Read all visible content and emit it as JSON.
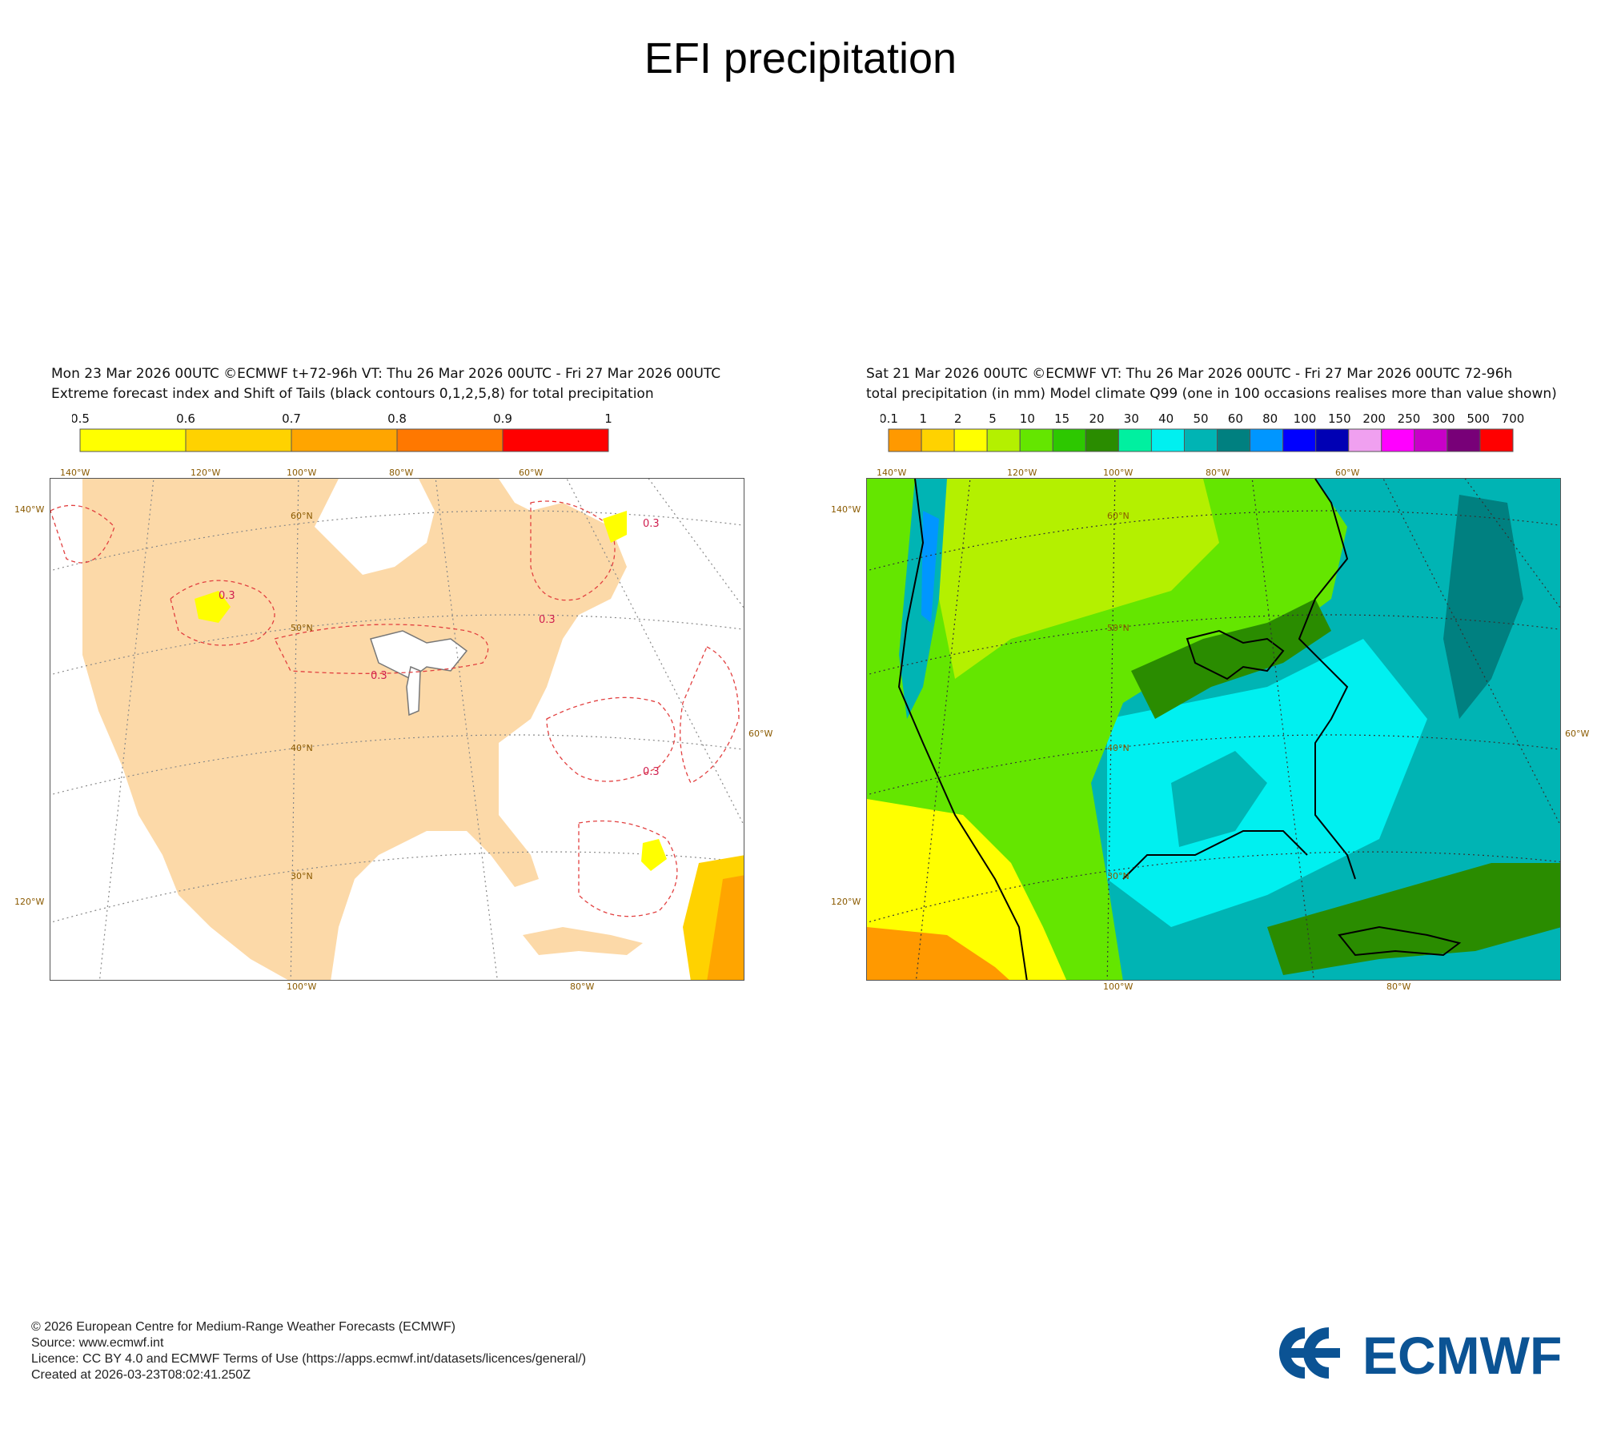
{
  "page": {
    "title": "EFI precipitation"
  },
  "left_panel": {
    "line1": "Mon 23 Mar 2026 00UTC ©ECMWF t+72-96h  VT: Thu 26 Mar 2026 00UTC - Fri 27 Mar 2026 00UTC",
    "line2": "Extreme forecast index and Shift of Tails (black contours 0,1,2,5,8) for total precipitation",
    "colorbar": {
      "ticks": [
        "0.5",
        "0.6",
        "0.7",
        "0.8",
        "0.9",
        "1"
      ],
      "colors": [
        "#ffff00",
        "#ffd200",
        "#ffa500",
        "#ff7800",
        "#ff0000"
      ]
    },
    "contour_labels": [
      "0.3",
      "0.3",
      "0.3",
      "0.3",
      "0.3"
    ],
    "land_color": "#fcd9a8",
    "contour_color": "#e24040"
  },
  "right_panel": {
    "line1": "Sat 21 Mar 2026 00UTC ©ECMWF VT: Thu 26 Mar 2026 00UTC - Fri 27 Mar 2026 00UTC    72-96h",
    "line2": "total precipitation (in mm)  Model climate Q99 (one in 100 occasions realises more than value shown)",
    "colorbar": {
      "ticks": [
        "0.1",
        "1",
        "2",
        "5",
        "10",
        "15",
        "20",
        "30",
        "40",
        "50",
        "60",
        "80",
        "100",
        "150",
        "200",
        "250",
        "300",
        "500",
        "700"
      ],
      "colors": [
        "#ff9900",
        "#ffd200",
        "#ffff00",
        "#b4f000",
        "#64e600",
        "#2dc800",
        "#2a8c00",
        "#00f0a0",
        "#00f0f0",
        "#00b4b4",
        "#008080",
        "#0096ff",
        "#0000ff",
        "#0000b4",
        "#f0a0f0",
        "#ff00ff",
        "#c800c8",
        "#780078",
        "#ff0000"
      ]
    }
  },
  "map_labels": {
    "top": [
      "140°W",
      "120°W",
      "100°W",
      "80°W",
      "60°W"
    ],
    "left": [
      "140°W",
      "120°W"
    ],
    "right": [
      "60°W"
    ],
    "bottom": [
      "100°W",
      "80°W"
    ],
    "lat": [
      "60°N",
      "50°N",
      "40°N",
      "30°N"
    ]
  },
  "footer": {
    "copyright": "© 2026 European Centre for Medium-Range Weather Forecasts (ECMWF)",
    "source": "Source: www.ecmwf.int",
    "licence": "Licence: CC BY 4.0 and ECMWF Terms of Use (https://apps.ecmwf.int/datasets/licences/general/)",
    "created": "Created at 2026-03-23T08:02:41.250Z"
  },
  "logo": {
    "text": "ECMWF",
    "color": "#0b5394"
  }
}
